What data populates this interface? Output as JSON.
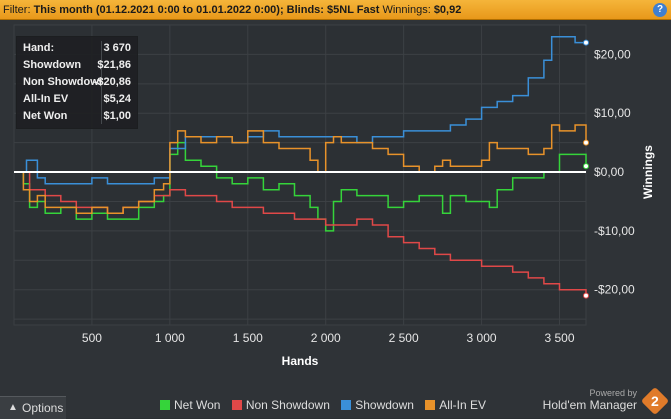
{
  "filter": {
    "label": "Filter:",
    "value": "This month (01.12.2021 0:00 to 01.01.2022 0:00); Blinds: $5NL Fast",
    "winnings_label": "Winnings:",
    "winnings_value": "$0,92",
    "help_icon": "?"
  },
  "stats": [
    {
      "label": "Hand:",
      "value": "3 670"
    },
    {
      "label": "Showdown",
      "value": "$21,86"
    },
    {
      "label": "Non Showdown",
      "value": "-$20,86"
    },
    {
      "label": "All-In EV",
      "value": "$5,24"
    },
    {
      "label": "Net Won",
      "value": "$1,00"
    }
  ],
  "chart_data": {
    "type": "line",
    "xlabel": "Hands",
    "ylabel": "Winnings",
    "xlim": [
      0,
      3670
    ],
    "ylim": [
      -26,
      25
    ],
    "x_ticks": [
      500,
      1000,
      1500,
      2000,
      2500,
      3000,
      3500
    ],
    "x_tick_labels": [
      "500",
      "1 000",
      "1 500",
      "2 000",
      "2 500",
      "3 000",
      "3 500"
    ],
    "y_ticks": [
      20,
      10,
      0,
      -10,
      -20
    ],
    "y_tick_labels": [
      "$20,00",
      "$10,00",
      "$0,00",
      "-$10,00",
      "-$20,00"
    ],
    "grid": true,
    "legend_position": "bottom",
    "series": [
      {
        "name": "Net Won",
        "color": "#35d43a",
        "x": [
          0,
          60,
          100,
          150,
          200,
          300,
          400,
          500,
          600,
          700,
          800,
          900,
          960,
          1000,
          1050,
          1100,
          1200,
          1300,
          1400,
          1500,
          1600,
          1700,
          1800,
          1900,
          1950,
          2000,
          2050,
          2100,
          2200,
          2300,
          2400,
          2500,
          2600,
          2700,
          2750,
          2800,
          2900,
          3000,
          3050,
          3100,
          3200,
          3300,
          3400,
          3500,
          3600,
          3670
        ],
        "y": [
          0,
          -2,
          -6,
          -5,
          -7,
          -6,
          -8,
          -7,
          -8,
          -8,
          -6,
          -5,
          -4,
          3,
          5,
          2,
          1,
          -1,
          -2,
          -1,
          -3,
          -2,
          -4,
          -6,
          -8,
          -10,
          -5,
          -3,
          -4,
          -4,
          -6,
          -5,
          -4,
          -4,
          -7,
          -4,
          -5,
          -5,
          -6,
          -3,
          -1,
          -1,
          0,
          3,
          3,
          1
        ]
      },
      {
        "name": "Non Showdown",
        "color": "#e04848",
        "x": [
          0,
          100,
          200,
          300,
          400,
          500,
          600,
          700,
          800,
          900,
          1000,
          1100,
          1200,
          1300,
          1400,
          1500,
          1600,
          1700,
          1800,
          1900,
          2000,
          2100,
          2200,
          2300,
          2400,
          2500,
          2600,
          2700,
          2800,
          2900,
          3000,
          3100,
          3200,
          3300,
          3400,
          3500,
          3600,
          3670
        ],
        "y": [
          0,
          -3,
          -4,
          -5,
          -6,
          -6,
          -7,
          -6,
          -5,
          -4,
          -3,
          -4,
          -4,
          -5,
          -6,
          -6,
          -7,
          -7,
          -8,
          -8,
          -9,
          -9,
          -8,
          -9,
          -11,
          -12,
          -13,
          -14,
          -15,
          -15,
          -16,
          -16,
          -17,
          -18,
          -19,
          -20,
          -20,
          -21
        ]
      },
      {
        "name": "Showdown",
        "color": "#3a8fd8",
        "x": [
          0,
          80,
          150,
          200,
          300,
          400,
          500,
          600,
          700,
          800,
          900,
          1000,
          1100,
          1200,
          1300,
          1400,
          1500,
          1600,
          1700,
          1800,
          1900,
          2000,
          2100,
          2200,
          2300,
          2400,
          2500,
          2600,
          2700,
          2800,
          2900,
          3000,
          3100,
          3200,
          3300,
          3400,
          3450,
          3500,
          3600,
          3670
        ],
        "y": [
          0,
          2,
          -1,
          -2,
          -2,
          -2,
          -1,
          -2,
          -2,
          -2,
          -1,
          4,
          6,
          6,
          6,
          5,
          6,
          7,
          6,
          6,
          6,
          6,
          6,
          5,
          6,
          6,
          7,
          7,
          7,
          8,
          9,
          11,
          12,
          13,
          16,
          19,
          23,
          23,
          22,
          22
        ]
      },
      {
        "name": "All-In EV",
        "color": "#e8922a",
        "x": [
          0,
          60,
          100,
          150,
          200,
          300,
          400,
          500,
          600,
          700,
          800,
          900,
          960,
          1000,
          1050,
          1100,
          1200,
          1300,
          1400,
          1500,
          1600,
          1700,
          1800,
          1900,
          1950,
          2000,
          2050,
          2100,
          2200,
          2300,
          2400,
          2500,
          2600,
          2700,
          2750,
          2800,
          2900,
          3000,
          3050,
          3100,
          3200,
          3300,
          3400,
          3450,
          3500,
          3600,
          3670
        ],
        "y": [
          0,
          -3,
          -5,
          -4,
          -6,
          -6,
          -7,
          -6,
          -7,
          -6,
          -5,
          -3,
          -2,
          5,
          7,
          6,
          5,
          6,
          5,
          7,
          5,
          4,
          4,
          2,
          0,
          5,
          6,
          5,
          5,
          4,
          3,
          1,
          0,
          1,
          2,
          1,
          1,
          2,
          5,
          4,
          4,
          3,
          4,
          8,
          7,
          8,
          5
        ]
      }
    ]
  },
  "options": {
    "label": "Options",
    "arrow_icon": "▲"
  },
  "powered_by": "Powered by",
  "brand": "Hold'em Manager",
  "brand_version": "2"
}
